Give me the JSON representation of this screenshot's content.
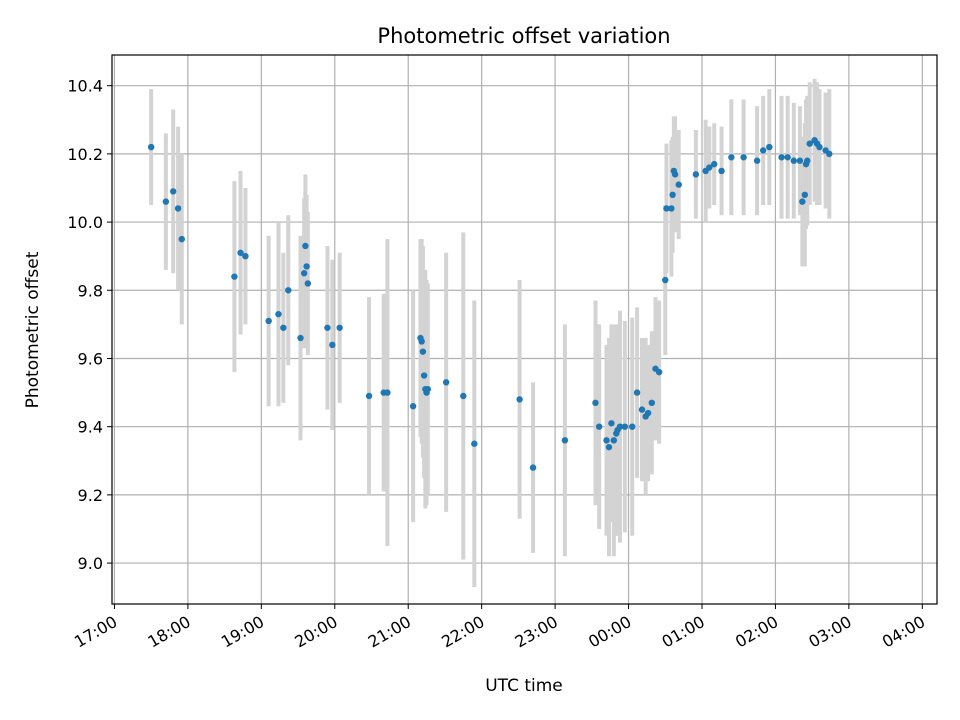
{
  "chart_data": {
    "type": "scatter",
    "title": "Photometric offset variation",
    "xlabel": "UTC time",
    "ylabel": "Photometric offset",
    "x_axis": "time",
    "x_tick_labels": [
      "17:00",
      "18:00",
      "19:00",
      "20:00",
      "21:00",
      "22:00",
      "23:00",
      "00:00",
      "01:00",
      "02:00",
      "03:00",
      "04:00"
    ],
    "y_tick_labels": [
      "9.0",
      "9.2",
      "9.4",
      "9.6",
      "9.8",
      "10.0",
      "10.2",
      "10.4"
    ],
    "xlim": [
      "16:58",
      "04:12"
    ],
    "ylim": [
      8.88,
      10.49
    ],
    "grid": true,
    "colors": {
      "points": "#1f77b4",
      "errorbars": "#d3d3d3",
      "grid": "#b0b0b0"
    },
    "series": [
      {
        "x": [
          "17:30",
          "17:42",
          "17:48",
          "17:52",
          "17:55",
          "18:38",
          "18:43",
          "18:47",
          "19:06",
          "19:14",
          "19:18",
          "19:22",
          "19:32",
          "19:35",
          "19:36",
          "19:37",
          "19:38",
          "19:54",
          "19:58",
          "20:04",
          "20:28",
          "20:40",
          "20:43",
          "21:04",
          "21:10",
          "21:11",
          "21:12",
          "21:13",
          "21:14",
          "21:15",
          "21:16",
          "21:31",
          "21:45",
          "21:54",
          "22:31",
          "22:42",
          "23:08",
          "23:33",
          "23:36",
          "23:42",
          "23:44",
          "23:46",
          "23:48",
          "23:50",
          "23:51",
          "23:53",
          "23:57",
          "00:03",
          "00:07",
          "00:11",
          "00:14",
          "00:16",
          "00:19",
          "00:22",
          "00:25",
          "00:30",
          "00:31",
          "00:35",
          "00:36",
          "00:37",
          "00:38",
          "00:41",
          "00:55",
          "01:03",
          "01:06",
          "01:10",
          "01:16",
          "01:24",
          "01:34",
          "01:45",
          "01:50",
          "01:55",
          "02:05",
          "02:10",
          "02:15",
          "02:20",
          "02:22",
          "02:24",
          "02:25",
          "02:26",
          "02:28",
          "02:32",
          "02:34",
          "02:36",
          "02:41",
          "02:44"
        ],
        "y": [
          10.22,
          10.06,
          10.09,
          10.04,
          9.95,
          9.84,
          9.91,
          9.9,
          9.71,
          9.73,
          9.69,
          9.8,
          9.66,
          9.85,
          9.93,
          9.87,
          9.82,
          9.69,
          9.64,
          9.69,
          9.49,
          9.5,
          9.5,
          9.46,
          9.66,
          9.65,
          9.62,
          9.55,
          9.51,
          9.5,
          9.51,
          9.53,
          9.49,
          9.35,
          9.48,
          9.28,
          9.36,
          9.47,
          9.4,
          9.36,
          9.34,
          9.41,
          9.36,
          9.38,
          9.39,
          9.4,
          9.4,
          9.4,
          9.5,
          9.45,
          9.43,
          9.44,
          9.47,
          9.57,
          9.56,
          9.83,
          10.04,
          10.04,
          10.08,
          10.15,
          10.14,
          10.11,
          10.14,
          10.15,
          10.16,
          10.17,
          10.15,
          10.19,
          10.19,
          10.18,
          10.21,
          10.22,
          10.19,
          10.19,
          10.18,
          10.18,
          10.06,
          10.08,
          10.17,
          10.18,
          10.23,
          10.24,
          10.23,
          10.22,
          10.21,
          10.2
        ],
        "yerr": [
          0.17,
          0.2,
          0.24,
          0.24,
          0.25,
          0.28,
          0.24,
          0.2,
          0.25,
          0.27,
          0.22,
          0.22,
          0.3,
          0.22,
          0.21,
          0.21,
          0.21,
          0.24,
          0.25,
          0.22,
          0.29,
          0.29,
          0.45,
          0.34,
          0.29,
          0.3,
          0.31,
          0.3,
          0.35,
          0.33,
          0.31,
          0.38,
          0.48,
          0.42,
          0.35,
          0.25,
          0.34,
          0.3,
          0.3,
          0.28,
          0.32,
          0.29,
          0.34,
          0.3,
          0.31,
          0.34,
          0.31,
          0.32,
          0.25,
          0.21,
          0.23,
          0.2,
          0.21,
          0.21,
          0.21,
          0.22,
          0.19,
          0.2,
          0.17,
          0.16,
          0.17,
          0.16,
          0.13,
          0.15,
          0.12,
          0.12,
          0.13,
          0.17,
          0.17,
          0.16,
          0.16,
          0.17,
          0.18,
          0.18,
          0.17,
          0.16,
          0.19,
          0.21,
          0.19,
          0.19,
          0.18,
          0.18,
          0.18,
          0.17,
          0.17,
          0.19
        ]
      }
    ]
  }
}
